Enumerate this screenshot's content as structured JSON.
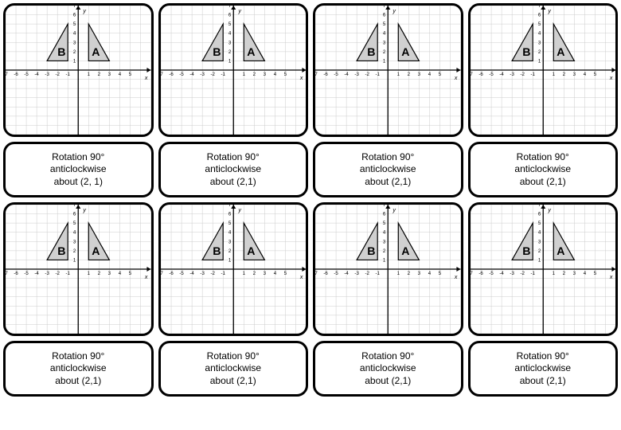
{
  "card": {
    "type": "flashcard",
    "count": 8,
    "graph": {
      "xlim": [
        -7,
        7
      ],
      "ylim": [
        -7,
        7
      ],
      "xtick_labels": [
        "-7",
        "-6",
        "-5",
        "-4",
        "-3",
        "-2",
        "-1",
        "1",
        "2",
        "3",
        "4",
        "5"
      ],
      "ytick_labels": [
        "1",
        "2",
        "3",
        "4",
        "5",
        "6",
        "7"
      ],
      "x_axis_label": "x",
      "y_axis_label": "y",
      "grid_color": "#cccccc",
      "axis_color": "#000000",
      "background_color": "#ffffff",
      "triangles": [
        {
          "label": "B",
          "vertices_graph": [
            [
              -1,
              1
            ],
            [
              -1,
              5
            ],
            [
              -3,
              1
            ]
          ],
          "fill": "#d0d0d0",
          "stroke": "#000000",
          "label_pos_graph": [
            -1.6,
            2.0
          ]
        },
        {
          "label": "A",
          "vertices_graph": [
            [
              1,
              1
            ],
            [
              1,
              5
            ],
            [
              3,
              1
            ]
          ],
          "fill": "#d0d0d0",
          "stroke": "#000000",
          "label_pos_graph": [
            1.7,
            2.0
          ]
        }
      ]
    },
    "caption": {
      "line1": "Rotation 90°",
      "line2": "anticlockwise",
      "line3": "about (2,1)"
    },
    "caption_alt": {
      "line1": "Rotation 90°",
      "line2": "anticlockwise",
      "line3": "about (2, 1)"
    },
    "border_color": "#000000",
    "border_radius": 14,
    "border_width": 3
  }
}
